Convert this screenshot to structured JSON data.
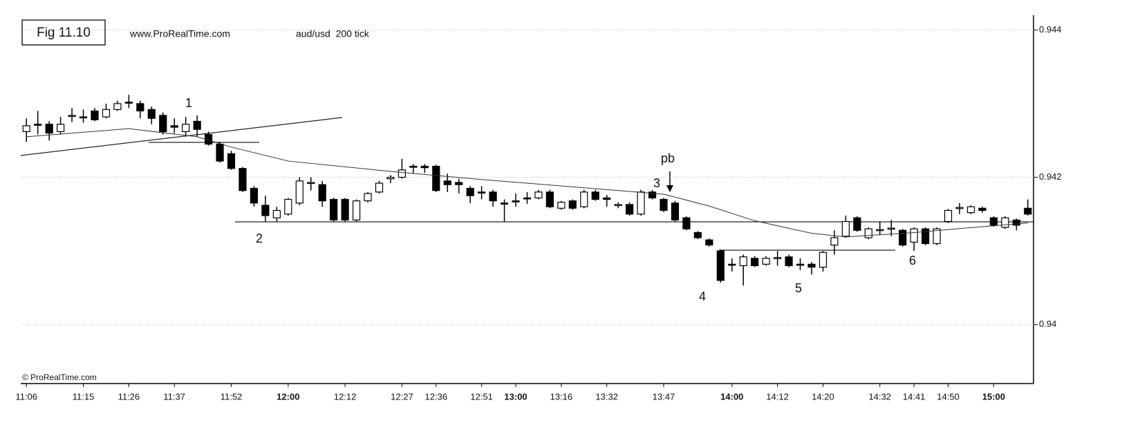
{
  "chart_data": {
    "type": "candlestick",
    "title": "Fig 11.10",
    "subtitle": "www.ProRealTime.com",
    "instrument": "aud/usd  200 tick",
    "watermark": "© ProRealTime.com",
    "annotations": [
      "1",
      "2",
      "pb",
      "3",
      "4",
      "5",
      "6"
    ],
    "up_color": "#ffffff",
    "down_color": "#000000",
    "categories": [
      "11:06",
      null,
      null,
      null,
      null,
      "11:15",
      null,
      null,
      null,
      "11:26",
      null,
      null,
      null,
      "11:37",
      null,
      null,
      null,
      null,
      "11:52",
      null,
      null,
      null,
      null,
      "12:00",
      null,
      null,
      null,
      null,
      "12:12",
      null,
      null,
      null,
      null,
      "12:27",
      null,
      null,
      "12:36",
      null,
      null,
      null,
      "12:51",
      null,
      null,
      "13:00",
      null,
      null,
      null,
      "13:16",
      null,
      null,
      null,
      "13:32",
      null,
      null,
      null,
      null,
      "13:47",
      null,
      null,
      null,
      null,
      null,
      "14:00",
      null,
      null,
      null,
      "14:12",
      null,
      null,
      null,
      "14:20",
      null,
      null,
      null,
      null,
      "14:32",
      null,
      null,
      "14:41",
      null,
      null,
      "14:50",
      null,
      null,
      null,
      "15:00",
      null,
      null,
      null
    ],
    "open": [
      0.94262,
      0.94272,
      0.94272,
      0.94262,
      0.94283,
      0.94282,
      0.9429,
      0.94282,
      0.94292,
      0.94302,
      0.943,
      0.94292,
      0.94284,
      0.9427,
      0.94262,
      0.94276,
      0.94258,
      0.94245,
      0.94232,
      0.94212,
      0.94185,
      0.94162,
      0.94145,
      0.9415,
      0.94165,
      0.94192,
      0.9419,
      0.9417,
      0.9417,
      0.94142,
      0.94168,
      0.9418,
      0.94198,
      0.942,
      0.94215,
      0.94215,
      0.94215,
      0.94195,
      0.94193,
      0.94185,
      0.9418,
      0.9418,
      0.94165,
      0.94168,
      0.94172,
      0.94172,
      0.9418,
      0.94158,
      0.94168,
      0.9416,
      0.9418,
      0.94172,
      0.94162,
      0.94163,
      0.9415,
      0.9418,
      0.9417,
      0.94165,
      0.94145,
      0.94125,
      0.94115,
      0.941,
      0.94082,
      0.9408,
      0.9409,
      0.94082,
      0.9409,
      0.94092,
      0.94082,
      0.94082,
      0.94078,
      0.94108,
      0.9412,
      0.94145,
      0.94118,
      0.94128,
      0.9413,
      0.94128,
      0.94112,
      0.9413,
      0.9411,
      0.9414,
      0.94158,
      0.94152,
      0.94158,
      0.94145,
      0.94132,
      0.94142,
      0.94158
    ],
    "high": [
      0.9428,
      0.9429,
      0.94276,
      0.94282,
      0.94294,
      0.94292,
      0.94294,
      0.943,
      0.94304,
      0.94312,
      0.94304,
      0.94296,
      0.94288,
      0.9428,
      0.94282,
      0.94284,
      0.94262,
      0.94248,
      0.94236,
      0.94214,
      0.94188,
      0.94175,
      0.9416,
      0.94172,
      0.942,
      0.942,
      0.94195,
      0.94172,
      0.94172,
      0.9417,
      0.9418,
      0.94195,
      0.94203,
      0.94225,
      0.94218,
      0.94218,
      0.94217,
      0.94205,
      0.94198,
      0.94188,
      0.94188,
      0.94183,
      0.9417,
      0.94178,
      0.9418,
      0.94183,
      0.94183,
      0.94168,
      0.9417,
      0.94183,
      0.94183,
      0.94176,
      0.94166,
      0.94166,
      0.94183,
      0.94183,
      0.94172,
      0.94168,
      0.94147,
      0.94127,
      0.94117,
      0.94102,
      0.9409,
      0.94095,
      0.94093,
      0.94093,
      0.941,
      0.94095,
      0.9409,
      0.94085,
      0.941,
      0.94128,
      0.94148,
      0.94147,
      0.94132,
      0.9414,
      0.94142,
      0.9413,
      0.94132,
      0.94132,
      0.94132,
      0.94157,
      0.94165,
      0.94162,
      0.9416,
      0.94147,
      0.94147,
      0.94144,
      0.9417
    ],
    "low": [
      0.94248,
      0.94258,
      0.9425,
      0.94258,
      0.94275,
      0.94274,
      0.94276,
      0.9428,
      0.9429,
      0.94294,
      0.9428,
      0.94272,
      0.94258,
      0.9426,
      0.94255,
      0.94255,
      0.94243,
      0.9422,
      0.9421,
      0.9418,
      0.9416,
      0.9414,
      0.9414,
      0.94148,
      0.94162,
      0.94182,
      0.9416,
      0.9414,
      0.9414,
      0.9414,
      0.94166,
      0.94178,
      0.94192,
      0.94198,
      0.94205,
      0.94206,
      0.9418,
      0.9418,
      0.94178,
      0.94165,
      0.9417,
      0.9416,
      0.9414,
      0.9416,
      0.94164,
      0.9417,
      0.94158,
      0.94156,
      0.94156,
      0.94158,
      0.94168,
      0.9416,
      0.94158,
      0.94148,
      0.94148,
      0.9417,
      0.94153,
      0.9414,
      0.94128,
      0.94116,
      0.94106,
      0.94057,
      0.94072,
      0.94053,
      0.94078,
      0.9408,
      0.9408,
      0.94078,
      0.94074,
      0.94068,
      0.94072,
      0.94095,
      0.94118,
      0.94126,
      0.94116,
      0.94122,
      0.9412,
      0.94106,
      0.941,
      0.94108,
      0.94108,
      0.94138,
      0.9415,
      0.9415,
      0.94152,
      0.94133,
      0.9413,
      0.94128,
      0.94148
    ],
    "close": [
      0.9427,
      0.94271,
      0.9426,
      0.94272,
      0.94284,
      0.94281,
      0.94278,
      0.94292,
      0.943,
      0.94301,
      0.9429,
      0.9428,
      0.94262,
      0.94268,
      0.94272,
      0.94265,
      0.94245,
      0.94222,
      0.94212,
      0.94182,
      0.94165,
      0.94148,
      0.94155,
      0.9417,
      0.94195,
      0.94193,
      0.94168,
      0.94142,
      0.94142,
      0.94168,
      0.94178,
      0.94192,
      0.942,
      0.9421,
      0.94214,
      0.94213,
      0.94182,
      0.9419,
      0.9419,
      0.94175,
      0.94179,
      0.94168,
      0.94164,
      0.94167,
      0.94171,
      0.9418,
      0.9416,
      0.94166,
      0.94158,
      0.9418,
      0.9417,
      0.9417,
      0.94163,
      0.9415,
      0.9418,
      0.94172,
      0.94155,
      0.94142,
      0.9413,
      0.94118,
      0.94108,
      0.9406,
      0.94081,
      0.94092,
      0.9408,
      0.9409,
      0.94091,
      0.9408,
      0.94081,
      0.94078,
      0.94098,
      0.94118,
      0.9414,
      0.94128,
      0.9413,
      0.94129,
      0.94131,
      0.94108,
      0.9413,
      0.9411,
      0.9413,
      0.94155,
      0.94159,
      0.9416,
      0.94155,
      0.94135,
      0.94145,
      0.94135,
      0.9415
    ],
    "ma": {
      "x": [
        0,
        9,
        15,
        18,
        23,
        32,
        40,
        48,
        56,
        60,
        64,
        69,
        72,
        78,
        84,
        88
      ],
      "values": [
        0.94255,
        0.94266,
        0.94255,
        0.94241,
        0.94222,
        0.94208,
        0.94197,
        0.94187,
        0.94177,
        0.94161,
        0.94141,
        0.94124,
        0.94119,
        0.94125,
        0.94133,
        0.94138
      ]
    },
    "ylim": [
      0.9392,
      0.9442
    ],
    "yticks": [
      0.94,
      0.942,
      0.944
    ],
    "grid": true
  }
}
